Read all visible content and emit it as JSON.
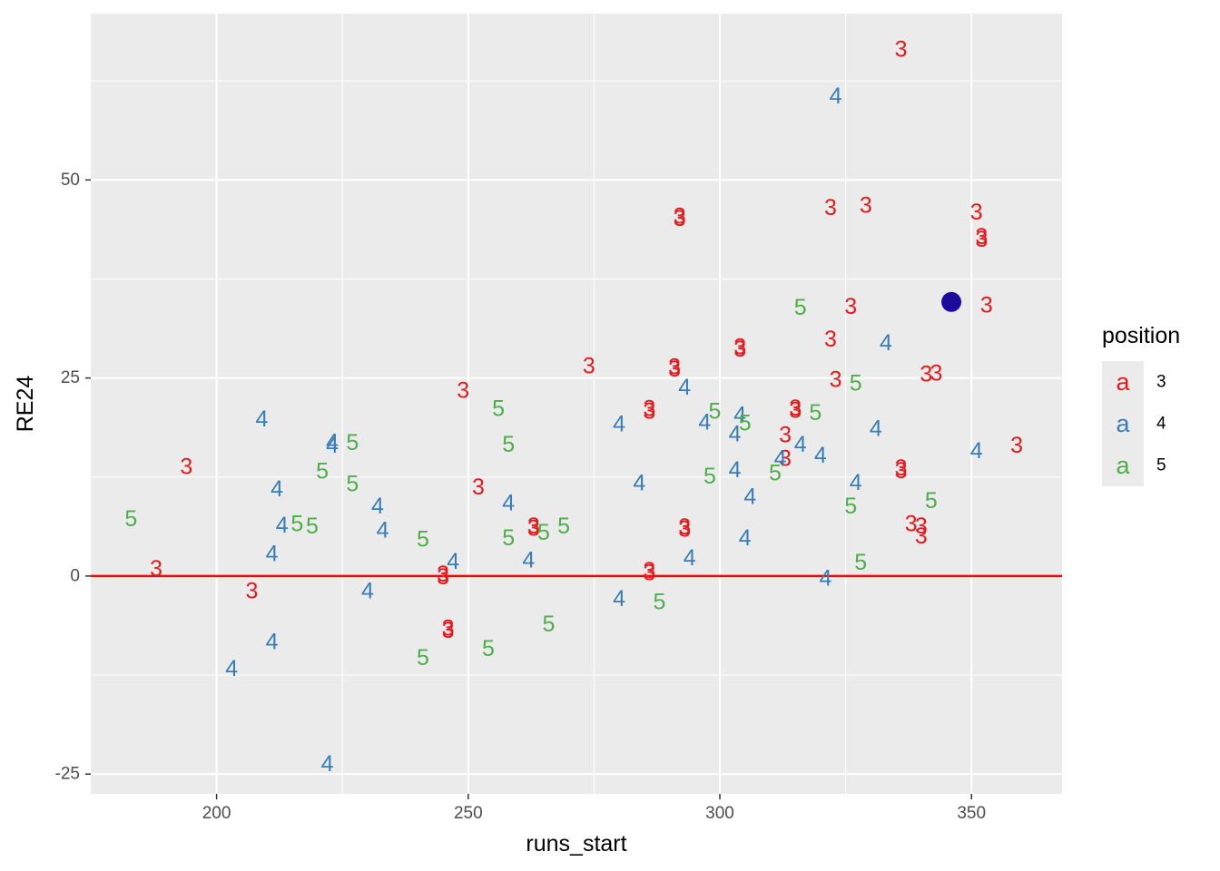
{
  "chart_data": {
    "type": "scatter",
    "xlabel": "runs_start",
    "ylabel": "RE24",
    "xlim": [
      175,
      368
    ],
    "ylim": [
      -27.5,
      71
    ],
    "x_ticks": [
      200,
      250,
      300,
      350
    ],
    "y_ticks": [
      -25,
      0,
      25,
      50
    ],
    "x_tick_labels": [
      "200",
      "250",
      "300",
      "350"
    ],
    "y_tick_labels": [
      "-25",
      "0",
      "25",
      "50"
    ],
    "grid": true,
    "reference_line": {
      "y": 0,
      "color": "#FF0000"
    },
    "highlight_point": {
      "x": 346,
      "y": 34.6,
      "color": "#1F0A9E"
    },
    "legend": {
      "title": "position",
      "key_glyph": "a",
      "placement": "right",
      "entries": [
        {
          "label": "3",
          "color": "#E41A1C"
        },
        {
          "label": "4",
          "color": "#377EB8"
        },
        {
          "label": "5",
          "color": "#4DAF4A"
        }
      ]
    },
    "series": [
      {
        "name": "3",
        "color": "#E41A1C",
        "points": [
          [
            336,
            66.5
          ],
          [
            322,
            46.5
          ],
          [
            329,
            46.8
          ],
          [
            351,
            45.9
          ],
          [
            292,
            45.1
          ],
          [
            292,
            45.4
          ],
          [
            352,
            42.5
          ],
          [
            352,
            42.8
          ],
          [
            326,
            34.0
          ],
          [
            353,
            34.2
          ],
          [
            322,
            29.9
          ],
          [
            304,
            28.6
          ],
          [
            304,
            28.9
          ],
          [
            274,
            26.5
          ],
          [
            291,
            26.1
          ],
          [
            291,
            26.4
          ],
          [
            341,
            25.5
          ],
          [
            343,
            25.6
          ],
          [
            323,
            24.8
          ],
          [
            249,
            23.4
          ],
          [
            286,
            20.8
          ],
          [
            286,
            21.1
          ],
          [
            315,
            20.9
          ],
          [
            315,
            21.2
          ],
          [
            313,
            17.8
          ],
          [
            313,
            14.8
          ],
          [
            359,
            16.5
          ],
          [
            194,
            13.8
          ],
          [
            336,
            13.3
          ],
          [
            336,
            13.6
          ],
          [
            252,
            11.2
          ],
          [
            338,
            6.6
          ],
          [
            340,
            6.3
          ],
          [
            340,
            5.0
          ],
          [
            293,
            5.9
          ],
          [
            293,
            6.2
          ],
          [
            263,
            6.0
          ],
          [
            263,
            6.3
          ],
          [
            188,
            0.9
          ],
          [
            286,
            0.4
          ],
          [
            286,
            0.7
          ],
          [
            245,
            -0.1
          ],
          [
            245,
            0.2
          ],
          [
            207,
            -1.9
          ],
          [
            246,
            -6.9
          ],
          [
            246,
            -6.6
          ]
        ]
      },
      {
        "name": "4",
        "color": "#377EB8",
        "points": [
          [
            323,
            60.6
          ],
          [
            333,
            29.4
          ],
          [
            293,
            23.8
          ],
          [
            209,
            19.8
          ],
          [
            304,
            20.3
          ],
          [
            297,
            19.4
          ],
          [
            280,
            19.2
          ],
          [
            331,
            18.6
          ],
          [
            303,
            17.9
          ],
          [
            316,
            16.6
          ],
          [
            223,
            16.5
          ],
          [
            223,
            16.9
          ],
          [
            351,
            15.8
          ],
          [
            320,
            15.2
          ],
          [
            312,
            14.8
          ],
          [
            303,
            13.4
          ],
          [
            284,
            11.7
          ],
          [
            327,
            11.8
          ],
          [
            212,
            11.0
          ],
          [
            306,
            10.0
          ],
          [
            258,
            9.2
          ],
          [
            232,
            8.8
          ],
          [
            213,
            6.4
          ],
          [
            233,
            5.8
          ],
          [
            305,
            4.8
          ],
          [
            211,
            2.8
          ],
          [
            294,
            2.3
          ],
          [
            262,
            2.0
          ],
          [
            247,
            1.8
          ],
          [
            321,
            -0.3
          ],
          [
            230,
            -1.9
          ],
          [
            280,
            -2.9
          ],
          [
            211,
            -8.3
          ],
          [
            203,
            -11.7
          ],
          [
            222,
            -23.7
          ]
        ]
      },
      {
        "name": "5",
        "color": "#4DAF4A",
        "points": [
          [
            316,
            33.9
          ],
          [
            327,
            24.3
          ],
          [
            256,
            21.1
          ],
          [
            299,
            20.8
          ],
          [
            319,
            20.6
          ],
          [
            305,
            19.3
          ],
          [
            227,
            16.8
          ],
          [
            258,
            16.6
          ],
          [
            221,
            13.2
          ],
          [
            298,
            12.6
          ],
          [
            311,
            13.0
          ],
          [
            227,
            11.6
          ],
          [
            326,
            8.8
          ],
          [
            342,
            9.5
          ],
          [
            183,
            7.2
          ],
          [
            269,
            6.3
          ],
          [
            216,
            6.6
          ],
          [
            219,
            6.3
          ],
          [
            265,
            5.5
          ],
          [
            258,
            4.8
          ],
          [
            241,
            4.6
          ],
          [
            328,
            1.7
          ],
          [
            288,
            -3.3
          ],
          [
            266,
            -6.1
          ],
          [
            254,
            -9.2
          ],
          [
            241,
            -10.3
          ]
        ]
      }
    ]
  }
}
